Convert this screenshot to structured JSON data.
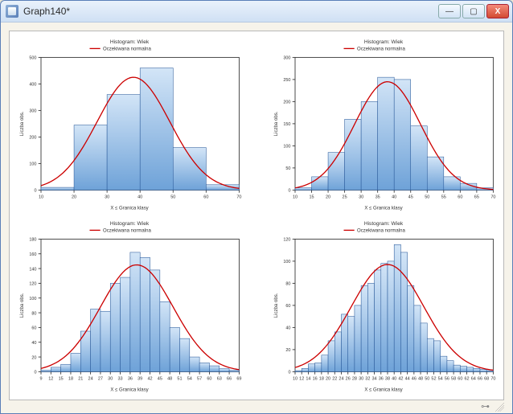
{
  "window": {
    "title": "Graph140*",
    "minimize_label": "—",
    "maximize_label": "▢",
    "close_label": "X"
  },
  "common": {
    "title_line": "Histogram: Wiek",
    "legend_label": "Oczekiwana normalna",
    "xlabel": "X ≤ Granica klasy",
    "ylabel": "Liczba obs.",
    "background_color": "#ffffff",
    "axis_color": "#333333",
    "curve_color": "#cc0000",
    "bar_fill_top": "#d3e5f7",
    "bar_fill_bottom": "#6ea2d8",
    "bar_stroke": "#2a5a9a"
  },
  "panels": [
    {
      "type": "histogram",
      "ylim": [
        0,
        500
      ],
      "ytick_step": 100,
      "xticks": [
        10,
        20,
        30,
        40,
        50,
        60,
        70
      ],
      "bars": [
        {
          "x0": 10,
          "x1": 20,
          "y": 10
        },
        {
          "x0": 20,
          "x1": 30,
          "y": 245
        },
        {
          "x0": 30,
          "x1": 40,
          "y": 360
        },
        {
          "x0": 40,
          "x1": 50,
          "y": 460
        },
        {
          "x0": 50,
          "x1": 60,
          "y": 160
        },
        {
          "x0": 60,
          "x1": 70,
          "y": 20
        }
      ],
      "curve_mean": 38,
      "curve_sd": 11,
      "curve_peak": 425
    },
    {
      "type": "histogram",
      "ylim": [
        0,
        300
      ],
      "ytick_step": 50,
      "xticks": [
        10,
        15,
        20,
        25,
        30,
        35,
        40,
        45,
        50,
        55,
        60,
        65,
        70
      ],
      "bars": [
        {
          "x0": 10,
          "x1": 15,
          "y": 5
        },
        {
          "x0": 15,
          "x1": 20,
          "y": 30
        },
        {
          "x0": 20,
          "x1": 25,
          "y": 85
        },
        {
          "x0": 25,
          "x1": 30,
          "y": 160
        },
        {
          "x0": 30,
          "x1": 35,
          "y": 200
        },
        {
          "x0": 35,
          "x1": 40,
          "y": 255
        },
        {
          "x0": 40,
          "x1": 45,
          "y": 250
        },
        {
          "x0": 45,
          "x1": 50,
          "y": 145
        },
        {
          "x0": 50,
          "x1": 55,
          "y": 75
        },
        {
          "x0": 55,
          "x1": 60,
          "y": 30
        },
        {
          "x0": 60,
          "x1": 65,
          "y": 15
        },
        {
          "x0": 65,
          "x1": 70,
          "y": 5
        }
      ],
      "curve_mean": 38,
      "curve_sd": 10,
      "curve_peak": 245
    },
    {
      "type": "histogram",
      "ylim": [
        0,
        180
      ],
      "ytick_step": 20,
      "xticks": [
        9,
        12,
        15,
        18,
        21,
        24,
        27,
        30,
        33,
        36,
        39,
        42,
        45,
        48,
        51,
        54,
        57,
        60,
        63,
        66,
        69
      ],
      "bars": [
        {
          "x0": 9,
          "x1": 12,
          "y": 2
        },
        {
          "x0": 12,
          "x1": 15,
          "y": 6
        },
        {
          "x0": 15,
          "x1": 18,
          "y": 10
        },
        {
          "x0": 18,
          "x1": 21,
          "y": 25
        },
        {
          "x0": 21,
          "x1": 24,
          "y": 55
        },
        {
          "x0": 24,
          "x1": 27,
          "y": 85
        },
        {
          "x0": 27,
          "x1": 30,
          "y": 82
        },
        {
          "x0": 30,
          "x1": 33,
          "y": 120
        },
        {
          "x0": 33,
          "x1": 36,
          "y": 128
        },
        {
          "x0": 36,
          "x1": 39,
          "y": 162
        },
        {
          "x0": 39,
          "x1": 42,
          "y": 155
        },
        {
          "x0": 42,
          "x1": 45,
          "y": 138
        },
        {
          "x0": 45,
          "x1": 48,
          "y": 95
        },
        {
          "x0": 48,
          "x1": 51,
          "y": 60
        },
        {
          "x0": 51,
          "x1": 54,
          "y": 45
        },
        {
          "x0": 54,
          "x1": 57,
          "y": 20
        },
        {
          "x0": 57,
          "x1": 60,
          "y": 12
        },
        {
          "x0": 60,
          "x1": 63,
          "y": 8
        },
        {
          "x0": 63,
          "x1": 66,
          "y": 4
        },
        {
          "x0": 66,
          "x1": 69,
          "y": 2
        }
      ],
      "curve_mean": 38,
      "curve_sd": 11,
      "curve_peak": 145
    },
    {
      "type": "histogram",
      "ylim": [
        0,
        120
      ],
      "ytick_step": 20,
      "xticks": [
        10,
        12,
        14,
        16,
        18,
        20,
        22,
        24,
        26,
        28,
        30,
        32,
        34,
        36,
        38,
        40,
        42,
        44,
        46,
        48,
        50,
        52,
        54,
        56,
        58,
        60,
        62,
        64,
        66,
        68,
        70
      ],
      "bars": [
        {
          "x0": 10,
          "x1": 12,
          "y": 1
        },
        {
          "x0": 12,
          "x1": 14,
          "y": 3
        },
        {
          "x0": 14,
          "x1": 16,
          "y": 7
        },
        {
          "x0": 16,
          "x1": 18,
          "y": 8
        },
        {
          "x0": 18,
          "x1": 20,
          "y": 15
        },
        {
          "x0": 20,
          "x1": 22,
          "y": 28
        },
        {
          "x0": 22,
          "x1": 24,
          "y": 36
        },
        {
          "x0": 24,
          "x1": 26,
          "y": 52
        },
        {
          "x0": 26,
          "x1": 28,
          "y": 50
        },
        {
          "x0": 28,
          "x1": 30,
          "y": 60
        },
        {
          "x0": 30,
          "x1": 32,
          "y": 78
        },
        {
          "x0": 32,
          "x1": 34,
          "y": 80
        },
        {
          "x0": 34,
          "x1": 36,
          "y": 92
        },
        {
          "x0": 36,
          "x1": 38,
          "y": 98
        },
        {
          "x0": 38,
          "x1": 40,
          "y": 100
        },
        {
          "x0": 40,
          "x1": 42,
          "y": 115
        },
        {
          "x0": 42,
          "x1": 44,
          "y": 108
        },
        {
          "x0": 44,
          "x1": 46,
          "y": 78
        },
        {
          "x0": 46,
          "x1": 48,
          "y": 60
        },
        {
          "x0": 48,
          "x1": 50,
          "y": 44
        },
        {
          "x0": 50,
          "x1": 52,
          "y": 30
        },
        {
          "x0": 52,
          "x1": 54,
          "y": 28
        },
        {
          "x0": 54,
          "x1": 56,
          "y": 14
        },
        {
          "x0": 56,
          "x1": 58,
          "y": 10
        },
        {
          "x0": 58,
          "x1": 60,
          "y": 6
        },
        {
          "x0": 60,
          "x1": 62,
          "y": 5
        },
        {
          "x0": 62,
          "x1": 64,
          "y": 4
        },
        {
          "x0": 64,
          "x1": 66,
          "y": 3
        },
        {
          "x0": 66,
          "x1": 68,
          "y": 2
        },
        {
          "x0": 68,
          "x1": 70,
          "y": 1
        }
      ],
      "curve_mean": 38,
      "curve_sd": 11,
      "curve_peak": 97
    }
  ]
}
